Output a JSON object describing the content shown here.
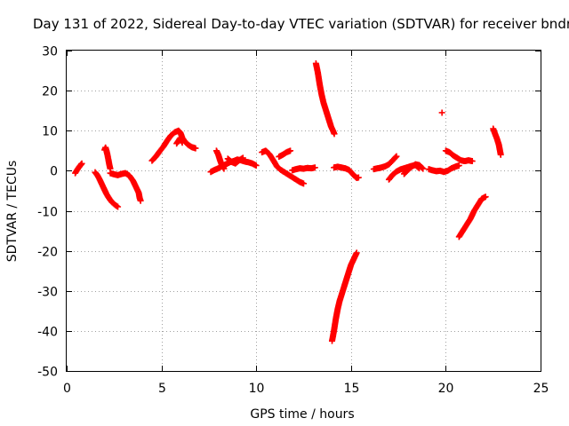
{
  "chart_data": {
    "type": "scatter",
    "title": "Day 131 of 2022, Sidereal Day-to-day VTEC variation (SDTVAR) for receiver bndr",
    "xlabel": "GPS time / hours",
    "ylabel": "SDTVAR / TECUs",
    "xlim": [
      0,
      25
    ],
    "ylim": [
      -50,
      30
    ],
    "x_ticks": [
      0,
      5,
      10,
      15,
      20,
      25
    ],
    "y_ticks": [
      -50,
      -40,
      -30,
      -20,
      -10,
      0,
      10,
      20,
      30
    ],
    "grid": true,
    "marker": "plus",
    "color": "#ff0000",
    "series": [
      {
        "x": [
          0.45,
          0.55,
          0.65,
          0.75,
          0.8
        ],
        "y": [
          -0.6,
          0.2,
          0.9,
          1.5,
          1.8
        ]
      },
      {
        "x": [
          1.5,
          1.6,
          1.7,
          1.8,
          1.9,
          2.0,
          2.1,
          2.2,
          2.3,
          2.4,
          2.5,
          2.6,
          2.7
        ],
        "y": [
          -0.4,
          -1.0,
          -1.8,
          -2.8,
          -3.8,
          -4.8,
          -5.8,
          -6.6,
          -7.3,
          -7.9,
          -8.3,
          -8.7,
          -9.0
        ]
      },
      {
        "x": [
          2.0,
          2.05,
          2.1,
          2.15,
          2.2,
          2.25,
          2.3
        ],
        "y": [
          5.2,
          5.8,
          5.0,
          4.0,
          2.8,
          1.5,
          0.5
        ]
      },
      {
        "x": [
          2.3,
          2.5,
          2.7,
          2.9,
          3.1,
          3.3,
          3.5,
          3.6,
          3.7,
          3.8,
          3.85,
          3.9
        ],
        "y": [
          -0.6,
          -0.9,
          -1.1,
          -0.8,
          -0.6,
          -1.2,
          -2.5,
          -3.5,
          -4.5,
          -5.5,
          -6.8,
          -7.5
        ]
      },
      {
        "x": [
          4.5,
          4.7,
          4.9,
          5.1,
          5.3,
          5.5,
          5.7,
          5.9,
          6.0,
          6.1,
          6.2,
          6.4,
          6.6,
          6.8
        ],
        "y": [
          2.5,
          3.5,
          4.8,
          6.0,
          7.5,
          8.8,
          9.6,
          10.0,
          9.5,
          8.2,
          7.5,
          6.5,
          5.9,
          5.6
        ]
      },
      {
        "x": [
          5.8,
          5.9,
          6.0,
          6.1
        ],
        "y": [
          6.8,
          7.5,
          8.2,
          7.0
        ]
      },
      {
        "x": [
          7.6,
          7.8,
          8.0,
          8.2,
          8.4,
          8.6,
          8.8,
          9.0,
          9.2,
          9.4,
          9.6,
          9.8,
          10.0
        ],
        "y": [
          -0.3,
          0.2,
          0.6,
          1.2,
          1.6,
          2.1,
          2.4,
          2.8,
          2.6,
          2.3,
          2.1,
          1.8,
          1.3
        ]
      },
      {
        "x": [
          7.9,
          8.0,
          8.1,
          8.2,
          8.3
        ],
        "y": [
          5.0,
          4.0,
          2.5,
          1.2,
          0.5
        ]
      },
      {
        "x": [
          8.5,
          8.7,
          8.9,
          9.1,
          9.3
        ],
        "y": [
          3.0,
          2.2,
          1.8,
          2.6,
          3.2
        ]
      },
      {
        "x": [
          10.3,
          10.5,
          10.7,
          10.9,
          11.1,
          11.3,
          11.5,
          11.7,
          11.9,
          12.1,
          12.3,
          12.5
        ],
        "y": [
          4.6,
          5.0,
          4.1,
          2.6,
          1.0,
          0.2,
          -0.4,
          -1.0,
          -1.6,
          -2.2,
          -2.8,
          -3.2
        ]
      },
      {
        "x": [
          11.2,
          11.4,
          11.6,
          11.8
        ],
        "y": [
          3.5,
          4.0,
          4.6,
          5.0
        ]
      },
      {
        "x": [
          11.9,
          12.1,
          12.3,
          12.5,
          12.7,
          12.9,
          13.1
        ],
        "y": [
          0.1,
          0.4,
          0.6,
          0.5,
          0.7,
          0.6,
          0.8
        ]
      },
      {
        "x": [
          13.15,
          13.25,
          13.35,
          13.45,
          13.55,
          13.65,
          13.75,
          13.85,
          13.95,
          14.05,
          14.12
        ],
        "y": [
          26.8,
          24.5,
          21.5,
          19.0,
          17.0,
          15.5,
          14.0,
          12.5,
          11.0,
          10.0,
          9.2
        ]
      },
      {
        "x": [
          14.0,
          14.1,
          14.2,
          14.3,
          14.4,
          14.5,
          14.6,
          14.7,
          14.8,
          14.9,
          15.0,
          15.1,
          15.2,
          15.3
        ],
        "y": [
          -42.5,
          -40.0,
          -37.0,
          -34.5,
          -32.5,
          -31.0,
          -29.5,
          -28.0,
          -26.5,
          -25.0,
          -23.5,
          -22.5,
          -21.5,
          -20.5
        ]
      },
      {
        "x": [
          14.1,
          14.3,
          14.5,
          14.7,
          14.9,
          15.1,
          15.3,
          15.4
        ],
        "y": [
          0.8,
          1.0,
          0.8,
          0.6,
          0.2,
          -0.9,
          -1.8,
          -1.7
        ]
      },
      {
        "x": [
          16.2,
          16.4,
          16.6,
          16.8,
          17.0,
          17.2,
          17.4
        ],
        "y": [
          0.4,
          0.6,
          0.8,
          1.1,
          1.6,
          2.6,
          3.6
        ]
      },
      {
        "x": [
          17.0,
          17.2,
          17.4,
          17.6,
          17.8,
          18.0,
          18.2,
          18.4,
          18.6
        ],
        "y": [
          -2.2,
          -1.0,
          -0.2,
          0.3,
          0.6,
          0.9,
          1.2,
          1.4,
          0.6
        ]
      },
      {
        "x": [
          17.8,
          18.0,
          18.2,
          18.4,
          18.6,
          18.8
        ],
        "y": [
          -0.8,
          0.2,
          1.0,
          1.6,
          1.4,
          0.5
        ]
      },
      {
        "x": [
          19.1,
          19.3,
          19.5,
          19.7,
          19.9,
          20.1,
          20.3,
          20.5,
          20.7
        ],
        "y": [
          0.4,
          0.1,
          -0.1,
          0.0,
          -0.3,
          0.0,
          0.6,
          1.0,
          1.3
        ]
      },
      {
        "x": [
          19.8
        ],
        "y": [
          14.5
        ]
      },
      {
        "x": [
          20.0,
          20.2,
          20.4,
          20.6,
          20.8,
          21.0,
          21.2,
          21.4
        ],
        "y": [
          5.0,
          4.6,
          3.8,
          3.2,
          2.6,
          2.4,
          2.6,
          2.4
        ]
      },
      {
        "x": [
          20.7,
          20.9,
          21.1,
          21.3,
          21.5,
          21.7,
          21.9,
          22.1
        ],
        "y": [
          -16.5,
          -15.0,
          -13.5,
          -12.0,
          -10.0,
          -8.5,
          -7.0,
          -6.5
        ]
      },
      {
        "x": [
          22.5,
          22.6,
          22.7,
          22.8,
          22.9
        ],
        "y": [
          10.5,
          9.2,
          8.0,
          6.5,
          4.0
        ]
      }
    ]
  }
}
